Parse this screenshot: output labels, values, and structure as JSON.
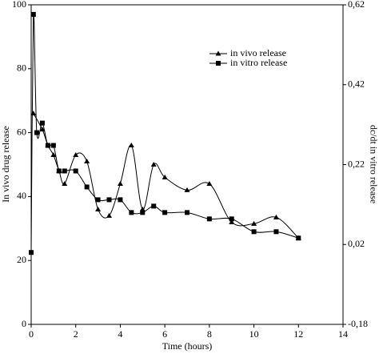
{
  "chart_data": {
    "type": "line",
    "xlabel": "Time (hours)",
    "ylabel": "In vivo drug release",
    "y2label": "dc/dt in vitro release",
    "xlim": [
      0,
      14
    ],
    "xticks": [
      0,
      2,
      4,
      6,
      8,
      10,
      12,
      14
    ],
    "ylim": [
      0,
      100
    ],
    "yticks": [
      0,
      20,
      40,
      60,
      80,
      100
    ],
    "y2lim": [
      -0.18,
      0.62
    ],
    "y2ticks": [
      {
        "value": -0.18,
        "label": "-0,18"
      },
      {
        "value": 0.02,
        "label": "0,02"
      },
      {
        "value": 0.22,
        "label": "0,22"
      },
      {
        "value": 0.42,
        "label": "0,42"
      },
      {
        "value": 0.62,
        "label": "0,62"
      }
    ],
    "legend": "upper right",
    "series": [
      {
        "name": "in vivo release",
        "color": "#000000",
        "marker": "triangle",
        "x": [
          0.1,
          0.5,
          0.75,
          1,
          1.25,
          1.5,
          2,
          2.5,
          3,
          3.5,
          4,
          4.5,
          5,
          5.5,
          6,
          7,
          8,
          9,
          10,
          11,
          12
        ],
        "values": [
          66,
          61,
          56,
          53,
          48,
          44,
          53,
          51,
          36,
          34,
          44,
          56,
          36,
          50,
          46,
          42,
          44,
          32,
          31.5,
          33.5,
          27
        ]
      },
      {
        "name": "in vitro release",
        "color": "#000000",
        "marker": "square",
        "axis": "y2",
        "x": [
          0,
          0.1,
          0.25,
          0.5,
          0.75,
          1,
          1.25,
          1.5,
          2,
          2.5,
          3,
          3.5,
          4,
          4.5,
          5,
          5.5,
          6,
          7,
          8,
          9,
          10,
          11,
          12
        ],
        "values": [
          0.0,
          0.596,
          0.3,
          0.324,
          0.268,
          0.268,
          0.204,
          0.204,
          0.204,
          0.164,
          0.132,
          0.132,
          0.132,
          0.1,
          0.1,
          0.116,
          0.1,
          0.1,
          0.084,
          0.084,
          0.052,
          0.052,
          0.036
        ]
      }
    ]
  }
}
